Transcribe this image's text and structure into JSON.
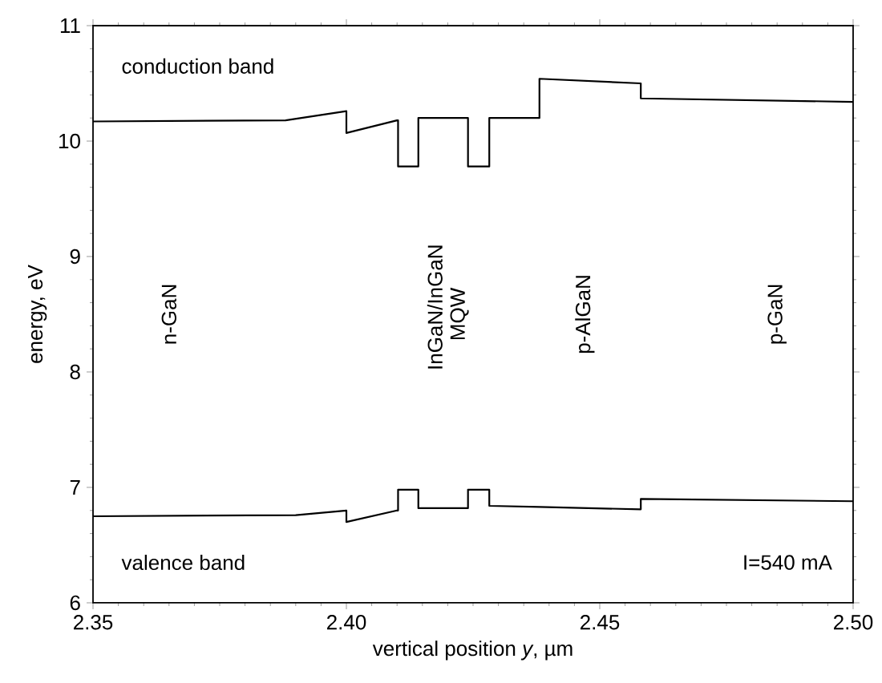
{
  "chart_data": {
    "type": "line",
    "xlabel": "vertical position *y*, µm",
    "ylabel": "energy, eV",
    "xlim": [
      2.35,
      2.5
    ],
    "ylim": [
      6,
      11
    ],
    "xticks": [
      {
        "value": 2.35,
        "label": "2.35"
      },
      {
        "value": 2.4,
        "label": "2.40"
      },
      {
        "value": 2.45,
        "label": "2.45"
      },
      {
        "value": 2.5,
        "label": "2.50"
      }
    ],
    "yticks": [
      6,
      7,
      8,
      9,
      10,
      11
    ],
    "grid": false,
    "legend": "left",
    "marker": "none",
    "line_style": "solid",
    "series": [
      {
        "name": "conduction band",
        "color": "#000000",
        "x": [
          2.35,
          2.388,
          2.4,
          2.4,
          2.41,
          2.4102,
          2.4102,
          2.4142,
          2.4142,
          2.424,
          2.424,
          2.4282,
          2.4282,
          2.4381,
          2.4381,
          2.4581,
          2.4581,
          2.5
        ],
        "values": [
          10.17,
          10.18,
          10.26,
          10.07,
          10.18,
          10.18,
          9.78,
          9.78,
          10.2,
          10.2,
          9.78,
          9.78,
          10.2,
          10.2,
          10.54,
          10.5,
          10.37,
          10.34
        ]
      },
      {
        "name": "valence band",
        "color": "#000000",
        "x": [
          2.35,
          2.39,
          2.4,
          2.4,
          2.41,
          2.4102,
          2.4102,
          2.4142,
          2.4142,
          2.424,
          2.424,
          2.4282,
          2.4282,
          2.4381,
          2.4581,
          2.4581,
          2.5
        ],
        "values": [
          6.75,
          6.76,
          6.8,
          6.7,
          6.8,
          6.8,
          6.98,
          6.98,
          6.82,
          6.82,
          6.98,
          6.98,
          6.84,
          6.83,
          6.81,
          6.9,
          6.88
        ]
      }
    ],
    "annotations": [
      "n-GaN",
      "InGaN/InGaN MQW",
      "p-AlGaN",
      "p-GaN",
      "I=540 mA"
    ]
  }
}
